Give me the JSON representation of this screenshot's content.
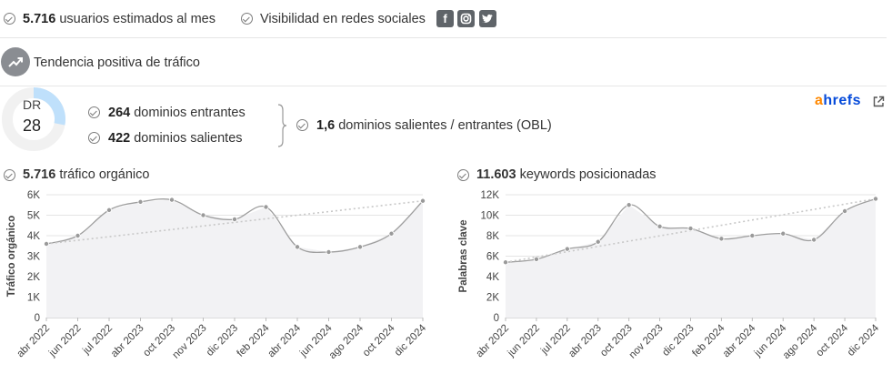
{
  "stats": {
    "users_value": "5.716",
    "users_label": "usuarios estimados al mes",
    "social_label": "Visibilidad en redes sociales",
    "social_icons": [
      "facebook-icon",
      "instagram-icon",
      "twitter-icon"
    ],
    "trend_label": "Tendencia positiva de tráfico"
  },
  "dr": {
    "label": "DR",
    "value": "28",
    "score": 28
  },
  "domains": {
    "incoming_value": "264",
    "incoming_label": "dominios entrantes",
    "outgoing_value": "422",
    "outgoing_label": "dominios salientes",
    "obl_value": "1,6",
    "obl_label": "dominios salientes / entrantes (OBL)"
  },
  "ahrefs": {
    "brand_a": "a",
    "brand_rest": "hrefs",
    "brand_color_a": "#ff8800",
    "brand_color_rest": "#054ada"
  },
  "chart_data": [
    {
      "type": "line",
      "title_value": "5.716",
      "title_label": "tráfico orgánico",
      "ylabel": "Tráfico orgánico",
      "ylim": [
        0,
        6000
      ],
      "yticks": [
        "0",
        "1K",
        "2K",
        "3K",
        "4K",
        "5K",
        "6K"
      ],
      "categories": [
        "abr 2022",
        "jun 2022",
        "jul 2022",
        "abr 2023",
        "oct 2023",
        "nov 2023",
        "dic 2023",
        "feb 2024",
        "abr 2024",
        "jun 2024",
        "ago 2024",
        "oct 2024",
        "dic 2024"
      ],
      "values": [
        3600,
        4000,
        5250,
        5650,
        5750,
        5000,
        4800,
        5400,
        3450,
        3200,
        3450,
        4100,
        5700
      ],
      "trend": [
        3600,
        5700
      ],
      "grid": true
    },
    {
      "type": "line",
      "title_value": "11.603",
      "title_label": "keywords posicionadas",
      "ylabel": "Palabras clave",
      "ylim": [
        0,
        12000
      ],
      "yticks": [
        "0",
        "2K",
        "4K",
        "6K",
        "8K",
        "10K",
        "12K"
      ],
      "categories": [
        "abr 2022",
        "jun 2022",
        "jul 2022",
        "abr 2023",
        "oct 2023",
        "nov 2023",
        "dic 2023",
        "feb 2024",
        "abr 2024",
        "jun 2024",
        "ago 2024",
        "oct 2024",
        "dic 2024"
      ],
      "values": [
        5400,
        5700,
        6700,
        7400,
        11000,
        8900,
        8700,
        7700,
        8000,
        8200,
        7600,
        10400,
        11600
      ],
      "trend": [
        5400,
        11600
      ],
      "grid": true
    }
  ],
  "colors": {
    "line": "#9e9e9e",
    "fill": "#f2f2f4",
    "trend": "#c8c8c8",
    "dr_arc": "#bfe0fb",
    "dr_track": "#f1f1f1"
  }
}
